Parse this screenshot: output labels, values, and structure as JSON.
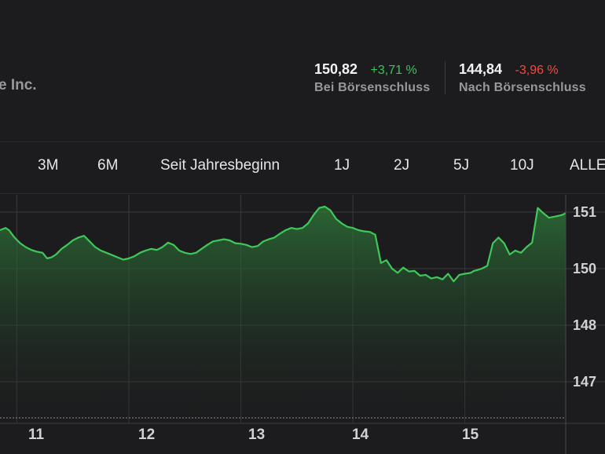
{
  "header": {
    "company_partial": "e Inc.",
    "close": {
      "price": "150,82",
      "change": "+3,71 %",
      "label": "Bei Börsenschluss"
    },
    "after": {
      "price": "144,84",
      "change": "-3,96 %",
      "label": "Nach Börsenschluss"
    }
  },
  "tabs": [
    {
      "id": "3m",
      "label": "3M"
    },
    {
      "id": "6m",
      "label": "6M"
    },
    {
      "id": "ytd",
      "label": "Seit Jahresbeginn"
    },
    {
      "id": "1y",
      "label": "1J"
    },
    {
      "id": "2y",
      "label": "2J"
    },
    {
      "id": "5y",
      "label": "5J"
    },
    {
      "id": "10y",
      "label": "10J"
    },
    {
      "id": "all",
      "label": "ALLE"
    }
  ],
  "colors": {
    "line": "#3fc85a",
    "positive": "#34c759",
    "negative": "#ff453a"
  },
  "chart_data": {
    "type": "area",
    "x_tick_labels": [
      "11",
      "12",
      "13",
      "14",
      "15"
    ],
    "y_tick_labels": [
      "151",
      "150",
      "148",
      "147"
    ],
    "y_ticks": [
      151,
      150,
      148,
      147
    ],
    "ylim": [
      146.2,
      151.5
    ],
    "x_range": [
      10.8,
      15.85
    ],
    "grid": true,
    "series": [
      {
        "x": [
          10.8,
          10.85,
          10.88,
          10.93,
          10.98,
          11.03,
          11.08,
          11.13,
          11.18,
          11.22,
          11.26,
          11.3,
          11.35,
          11.4,
          11.45,
          11.5,
          11.55,
          11.6,
          11.65,
          11.7,
          11.75,
          11.8,
          11.85,
          11.9,
          11.95,
          12.0,
          12.05,
          12.1,
          12.15,
          12.2,
          12.25,
          12.3,
          12.35,
          12.4,
          12.45,
          12.5,
          12.55,
          12.6,
          12.65,
          12.7,
          12.75,
          12.8,
          12.85,
          12.9,
          12.95,
          13.0,
          13.05,
          13.1,
          13.15,
          13.2,
          13.25,
          13.3,
          13.35,
          13.4,
          13.45,
          13.5,
          13.55,
          13.6,
          13.65,
          13.7,
          13.75,
          13.8,
          13.85,
          13.9,
          13.95,
          14.0,
          14.05,
          14.1,
          14.15,
          14.2,
          14.25,
          14.3,
          14.35,
          14.4,
          14.42,
          14.45,
          14.5,
          14.55,
          14.6,
          14.65,
          14.7,
          14.75,
          14.8,
          14.85,
          14.9,
          14.95,
          15.0,
          15.03,
          15.06,
          15.1,
          15.15,
          15.2,
          15.25,
          15.3,
          15.35,
          15.4,
          15.45,
          15.5,
          15.55,
          15.6,
          15.65,
          15.7,
          15.75,
          15.8,
          15.83,
          15.85
        ],
        "y": [
          150.68,
          150.72,
          150.68,
          150.55,
          150.45,
          150.38,
          150.33,
          150.3,
          150.28,
          150.18,
          150.2,
          150.25,
          150.35,
          150.42,
          150.5,
          150.55,
          150.58,
          150.48,
          150.38,
          150.32,
          150.28,
          150.24,
          150.2,
          150.16,
          150.18,
          150.22,
          150.28,
          150.32,
          150.35,
          150.33,
          150.38,
          150.46,
          150.42,
          150.32,
          150.28,
          150.26,
          150.28,
          150.35,
          150.42,
          150.48,
          150.5,
          150.52,
          150.5,
          150.45,
          150.44,
          150.42,
          150.38,
          150.4,
          150.48,
          150.52,
          150.55,
          150.62,
          150.68,
          150.72,
          150.7,
          150.72,
          150.8,
          150.95,
          151.12,
          151.16,
          151.05,
          150.88,
          150.8,
          150.74,
          150.72,
          150.68,
          150.66,
          150.65,
          150.6,
          150.1,
          150.15,
          150.0,
          149.85,
          150.02,
          149.98,
          149.9,
          149.92,
          149.75,
          149.78,
          149.65,
          149.7,
          149.62,
          149.82,
          149.55,
          149.78,
          149.82,
          149.85,
          149.92,
          149.95,
          150.0,
          150.05,
          150.45,
          150.55,
          150.45,
          150.25,
          150.32,
          150.28,
          150.38,
          150.46,
          151.12,
          150.98,
          150.9,
          150.92,
          150.94,
          150.96,
          150.98
        ]
      }
    ]
  }
}
